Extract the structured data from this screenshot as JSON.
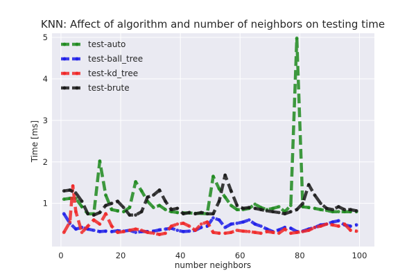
{
  "chart_data": {
    "type": "line",
    "title": "KNN: Affect of algorithm and number of neighbors on testing time",
    "xlabel": "number neighbors",
    "ylabel": "Time [ms]",
    "xlim": [
      -3,
      105
    ],
    "ylim": [
      -0.04,
      5.1
    ],
    "xticks": [
      0,
      20,
      40,
      60,
      80,
      100
    ],
    "yticks": [
      1,
      2,
      3,
      4,
      5
    ],
    "grid": true,
    "legend_position": "top-left",
    "series": [
      {
        "name": "test-auto",
        "color": "#1f8a1f",
        "x": [
          1,
          3,
          5,
          7,
          9,
          11,
          13,
          15,
          17,
          19,
          21,
          23,
          25,
          27,
          29,
          31,
          33,
          35,
          37,
          39,
          41,
          43,
          45,
          47,
          49,
          51,
          53,
          55,
          57,
          59,
          61,
          63,
          65,
          67,
          69,
          71,
          73,
          75,
          77,
          79,
          81,
          83,
          85,
          87,
          89,
          91,
          93,
          95,
          97,
          99
        ],
        "y": [
          1.1,
          1.12,
          1.12,
          0.92,
          0.75,
          0.75,
          2.02,
          1.2,
          0.85,
          0.82,
          0.8,
          0.9,
          1.52,
          1.3,
          1.05,
          0.9,
          0.95,
          0.85,
          0.8,
          0.78,
          0.77,
          0.77,
          0.76,
          0.76,
          0.75,
          1.65,
          1.35,
          1.15,
          0.95,
          0.85,
          0.85,
          0.88,
          0.98,
          0.9,
          0.85,
          0.88,
          0.92,
          0.8,
          0.95,
          4.98,
          0.92,
          0.9,
          0.88,
          0.85,
          0.83,
          0.8,
          0.8,
          0.8,
          0.8,
          0.8
        ]
      },
      {
        "name": "test-ball_tree",
        "color": "#1f1fe8",
        "x": [
          1,
          3,
          5,
          7,
          9,
          11,
          13,
          15,
          17,
          19,
          21,
          23,
          25,
          27,
          29,
          31,
          33,
          35,
          37,
          39,
          41,
          43,
          45,
          47,
          49,
          51,
          53,
          55,
          57,
          59,
          61,
          63,
          65,
          67,
          69,
          71,
          73,
          75,
          77,
          79,
          81,
          83,
          85,
          87,
          89,
          91,
          93,
          95,
          97,
          99
        ],
        "y": [
          0.75,
          0.52,
          0.38,
          0.42,
          0.38,
          0.35,
          0.32,
          0.33,
          0.32,
          0.34,
          0.33,
          0.35,
          0.3,
          0.32,
          0.32,
          0.33,
          0.36,
          0.38,
          0.4,
          0.35,
          0.32,
          0.33,
          0.35,
          0.42,
          0.45,
          0.65,
          0.6,
          0.42,
          0.5,
          0.52,
          0.55,
          0.6,
          0.5,
          0.45,
          0.38,
          0.32,
          0.36,
          0.42,
          0.4,
          0.32,
          0.33,
          0.38,
          0.42,
          0.48,
          0.5,
          0.55,
          0.58,
          0.48,
          0.45,
          0.48
        ]
      },
      {
        "name": "test-kd_tree",
        "color": "#f02828",
        "x": [
          1,
          3,
          4,
          5,
          7,
          9,
          11,
          13,
          15,
          17,
          19,
          21,
          23,
          25,
          27,
          29,
          31,
          33,
          35,
          37,
          39,
          41,
          43,
          45,
          47,
          49,
          51,
          53,
          55,
          57,
          59,
          61,
          63,
          65,
          67,
          69,
          71,
          73,
          75,
          77,
          79,
          81,
          83,
          85,
          87,
          89,
          91,
          93,
          95,
          97,
          99
        ],
        "y": [
          0.3,
          0.55,
          1.42,
          0.8,
          0.3,
          0.45,
          0.6,
          0.5,
          0.75,
          0.45,
          0.3,
          0.32,
          0.35,
          0.38,
          0.35,
          0.3,
          0.28,
          0.25,
          0.28,
          0.45,
          0.5,
          0.52,
          0.45,
          0.35,
          0.5,
          0.55,
          0.3,
          0.28,
          0.28,
          0.3,
          0.35,
          0.33,
          0.32,
          0.3,
          0.28,
          0.32,
          0.3,
          0.28,
          0.38,
          0.28,
          0.3,
          0.32,
          0.35,
          0.42,
          0.45,
          0.5,
          0.48,
          0.45,
          0.5,
          0.35,
          0.33
        ]
      },
      {
        "name": "test-brute",
        "color": "#1a1a1a",
        "x": [
          1,
          3,
          5,
          7,
          9,
          11,
          13,
          15,
          17,
          19,
          21,
          23,
          25,
          27,
          29,
          31,
          33,
          35,
          37,
          39,
          41,
          43,
          45,
          47,
          49,
          51,
          53,
          55,
          57,
          59,
          61,
          63,
          65,
          67,
          69,
          71,
          73,
          75,
          77,
          79,
          81,
          83,
          85,
          87,
          89,
          91,
          93,
          95,
          97,
          99
        ],
        "y": [
          1.3,
          1.32,
          1.25,
          1.05,
          0.75,
          0.72,
          0.78,
          0.95,
          1.0,
          1.05,
          0.9,
          0.72,
          0.72,
          0.8,
          1.15,
          1.2,
          1.32,
          1.05,
          0.85,
          0.88,
          0.75,
          0.78,
          0.75,
          0.78,
          0.75,
          0.75,
          1.05,
          1.68,
          1.3,
          0.95,
          0.88,
          0.9,
          0.88,
          0.85,
          0.82,
          0.8,
          0.78,
          0.75,
          0.8,
          0.85,
          1.0,
          1.45,
          1.2,
          1.0,
          0.88,
          0.85,
          0.92,
          0.85,
          0.85,
          0.82
        ]
      }
    ]
  }
}
